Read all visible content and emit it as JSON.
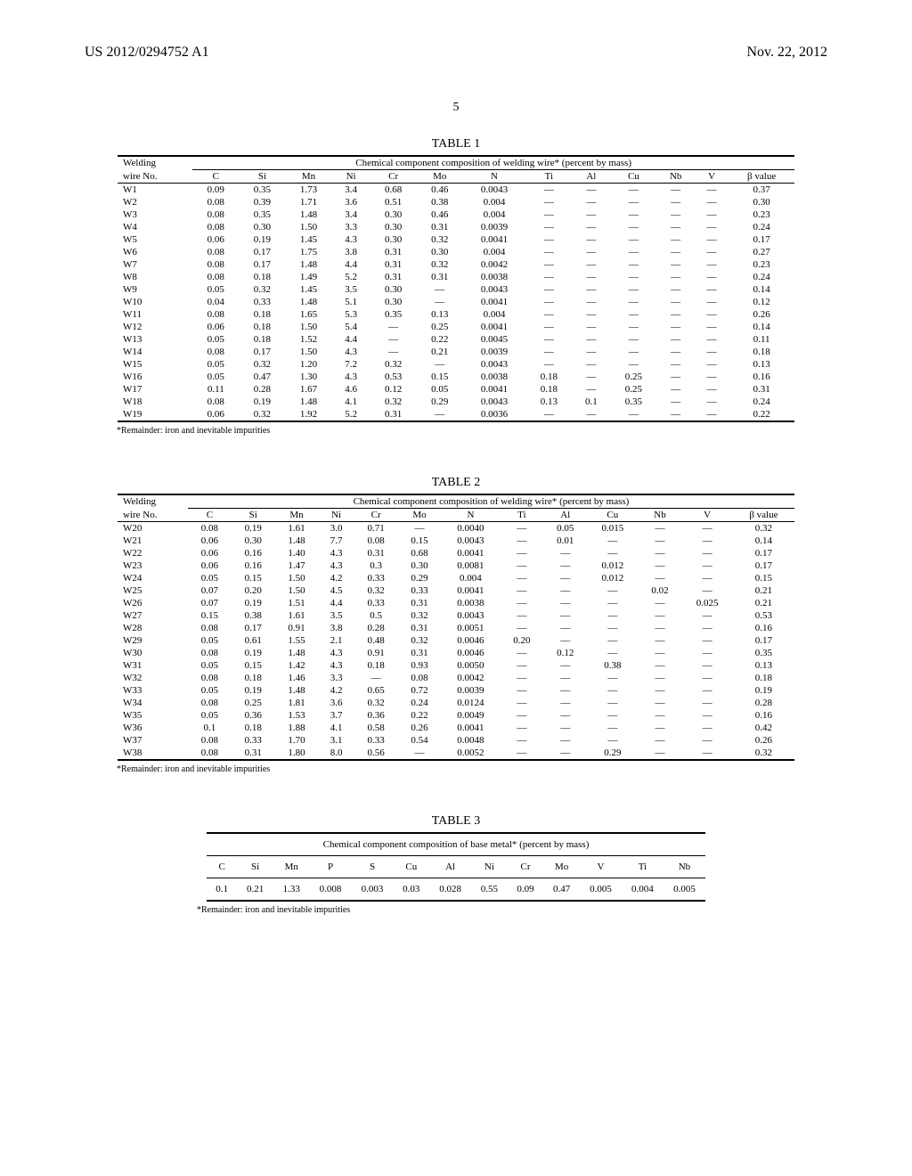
{
  "header": {
    "doc_id": "US 2012/0294752 A1",
    "date": "Nov. 22, 2012"
  },
  "page_number": "5",
  "footnote": "*Remainder: iron and inevitable impurities",
  "table1": {
    "title": "TABLE 1",
    "span_header": "Chemical component composition of welding wire* (percent by mass)",
    "col_label_1": "Welding",
    "col_label_2": "wire No.",
    "cols": [
      "C",
      "Si",
      "Mn",
      "Ni",
      "Cr",
      "Mo",
      "N",
      "Ti",
      "Al",
      "Cu",
      "Nb",
      "V",
      "β value"
    ],
    "rows": [
      {
        "id": "W1",
        "v": [
          "0.09",
          "0.35",
          "1.73",
          "3.4",
          "0.68",
          "0.46",
          "0.0043",
          "—",
          "—",
          "—",
          "—",
          "—",
          "0.37"
        ]
      },
      {
        "id": "W2",
        "v": [
          "0.08",
          "0.39",
          "1.71",
          "3.6",
          "0.51",
          "0.38",
          "0.004",
          "—",
          "—",
          "—",
          "—",
          "—",
          "0.30"
        ]
      },
      {
        "id": "W3",
        "v": [
          "0.08",
          "0.35",
          "1.48",
          "3.4",
          "0.30",
          "0.46",
          "0.004",
          "—",
          "—",
          "—",
          "—",
          "—",
          "0.23"
        ]
      },
      {
        "id": "W4",
        "v": [
          "0.08",
          "0.30",
          "1.50",
          "3.3",
          "0.30",
          "0.31",
          "0.0039",
          "—",
          "—",
          "—",
          "—",
          "—",
          "0.24"
        ]
      },
      {
        "id": "W5",
        "v": [
          "0.06",
          "0.19",
          "1.45",
          "4.3",
          "0.30",
          "0.32",
          "0.0041",
          "—",
          "—",
          "—",
          "—",
          "—",
          "0.17"
        ]
      },
      {
        "id": "W6",
        "v": [
          "0.08",
          "0.17",
          "1.75",
          "3.8",
          "0.31",
          "0.30",
          "0.004",
          "—",
          "—",
          "—",
          "—",
          "—",
          "0.27"
        ]
      },
      {
        "id": "W7",
        "v": [
          "0.08",
          "0.17",
          "1.48",
          "4.4",
          "0.31",
          "0.32",
          "0.0042",
          "—",
          "—",
          "—",
          "—",
          "—",
          "0.23"
        ]
      },
      {
        "id": "W8",
        "v": [
          "0.08",
          "0.18",
          "1.49",
          "5.2",
          "0.31",
          "0.31",
          "0.0038",
          "—",
          "—",
          "—",
          "—",
          "—",
          "0.24"
        ]
      },
      {
        "id": "W9",
        "v": [
          "0.05",
          "0.32",
          "1.45",
          "3.5",
          "0.30",
          "—",
          "0.0043",
          "—",
          "—",
          "—",
          "—",
          "—",
          "0.14"
        ]
      },
      {
        "id": "W10",
        "v": [
          "0.04",
          "0.33",
          "1.48",
          "5.1",
          "0.30",
          "—",
          "0.0041",
          "—",
          "—",
          "—",
          "—",
          "—",
          "0.12"
        ]
      },
      {
        "id": "W11",
        "v": [
          "0.08",
          "0.18",
          "1.65",
          "5.3",
          "0.35",
          "0.13",
          "0.004",
          "—",
          "—",
          "—",
          "—",
          "—",
          "0.26"
        ]
      },
      {
        "id": "W12",
        "v": [
          "0.06",
          "0.18",
          "1.50",
          "5.4",
          "—",
          "0.25",
          "0.0041",
          "—",
          "—",
          "—",
          "—",
          "—",
          "0.14"
        ]
      },
      {
        "id": "W13",
        "v": [
          "0.05",
          "0.18",
          "1.52",
          "4.4",
          "—",
          "0.22",
          "0.0045",
          "—",
          "—",
          "—",
          "—",
          "—",
          "0.11"
        ]
      },
      {
        "id": "W14",
        "v": [
          "0.08",
          "0.17",
          "1.50",
          "4.3",
          "—",
          "0.21",
          "0.0039",
          "—",
          "—",
          "—",
          "—",
          "—",
          "0.18"
        ]
      },
      {
        "id": "W15",
        "v": [
          "0.05",
          "0.32",
          "1.20",
          "7.2",
          "0.32",
          "—",
          "0.0043",
          "—",
          "—",
          "—",
          "—",
          "—",
          "0.13"
        ]
      },
      {
        "id": "W16",
        "v": [
          "0.05",
          "0.47",
          "1.30",
          "4.3",
          "0.53",
          "0.15",
          "0.0038",
          "0.18",
          "—",
          "0.25",
          "—",
          "—",
          "0.16"
        ]
      },
      {
        "id": "W17",
        "v": [
          "0.11",
          "0.28",
          "1.67",
          "4.6",
          "0.12",
          "0.05",
          "0.0041",
          "0.18",
          "—",
          "0.25",
          "—",
          "—",
          "0.31"
        ]
      },
      {
        "id": "W18",
        "v": [
          "0.08",
          "0.19",
          "1.48",
          "4.1",
          "0.32",
          "0.29",
          "0.0043",
          "0.13",
          "0.1",
          "0.35",
          "—",
          "—",
          "0.24"
        ]
      },
      {
        "id": "W19",
        "v": [
          "0.06",
          "0.32",
          "1.92",
          "5.2",
          "0.31",
          "—",
          "0.0036",
          "—",
          "—",
          "—",
          "—",
          "—",
          "0.22"
        ]
      }
    ]
  },
  "table2": {
    "title": "TABLE 2",
    "span_header": "Chemical component composition of welding wire* (percent by mass)",
    "col_label_1": "Welding",
    "col_label_2": "wire No.",
    "cols": [
      "C",
      "Si",
      "Mn",
      "Ni",
      "Cr",
      "Mo",
      "N",
      "Ti",
      "Al",
      "Cu",
      "Nb",
      "V",
      "β value"
    ],
    "rows": [
      {
        "id": "W20",
        "v": [
          "0.08",
          "0.19",
          "1.61",
          "3.0",
          "0.71",
          "—",
          "0.0040",
          "—",
          "0.05",
          "0.015",
          "—",
          "—",
          "0.32"
        ]
      },
      {
        "id": "W21",
        "v": [
          "0.06",
          "0.30",
          "1.48",
          "7.7",
          "0.08",
          "0.15",
          "0.0043",
          "—",
          "0.01",
          "—",
          "—",
          "—",
          "0.14"
        ]
      },
      {
        "id": "W22",
        "v": [
          "0.06",
          "0.16",
          "1.40",
          "4.3",
          "0.31",
          "0.68",
          "0.0041",
          "—",
          "—",
          "—",
          "—",
          "—",
          "0.17"
        ]
      },
      {
        "id": "W23",
        "v": [
          "0.06",
          "0.16",
          "1.47",
          "4.3",
          "0.3",
          "0.30",
          "0.0081",
          "—",
          "—",
          "0.012",
          "—",
          "—",
          "0.17"
        ]
      },
      {
        "id": "W24",
        "v": [
          "0.05",
          "0.15",
          "1.50",
          "4.2",
          "0.33",
          "0.29",
          "0.004",
          "—",
          "—",
          "0.012",
          "—",
          "—",
          "0.15"
        ]
      },
      {
        "id": "W25",
        "v": [
          "0.07",
          "0.20",
          "1.50",
          "4.5",
          "0.32",
          "0.33",
          "0.0041",
          "—",
          "—",
          "—",
          "0.02",
          "—",
          "0.21"
        ]
      },
      {
        "id": "W26",
        "v": [
          "0.07",
          "0.19",
          "1.51",
          "4.4",
          "0.33",
          "0.31",
          "0.0038",
          "—",
          "—",
          "—",
          "—",
          "0.025",
          "0.21"
        ]
      },
      {
        "id": "W27",
        "v": [
          "0.15",
          "0.38",
          "1.61",
          "3.5",
          "0.5",
          "0.32",
          "0.0043",
          "—",
          "—",
          "—",
          "—",
          "—",
          "0.53"
        ]
      },
      {
        "id": "W28",
        "v": [
          "0.08",
          "0.17",
          "0.91",
          "3.8",
          "0.28",
          "0.31",
          "0.0051",
          "—",
          "—",
          "—",
          "—",
          "—",
          "0.16"
        ]
      },
      {
        "id": "W29",
        "v": [
          "0.05",
          "0.61",
          "1.55",
          "2.1",
          "0.48",
          "0.32",
          "0.0046",
          "0.20",
          "—",
          "—",
          "—",
          "—",
          "0.17"
        ]
      },
      {
        "id": "W30",
        "v": [
          "0.08",
          "0.19",
          "1.48",
          "4.3",
          "0.91",
          "0.31",
          "0.0046",
          "—",
          "0.12",
          "—",
          "—",
          "—",
          "0.35"
        ]
      },
      {
        "id": "W31",
        "v": [
          "0.05",
          "0.15",
          "1.42",
          "4.3",
          "0.18",
          "0.93",
          "0.0050",
          "—",
          "—",
          "0.38",
          "—",
          "—",
          "0.13"
        ]
      },
      {
        "id": "W32",
        "v": [
          "0.08",
          "0.18",
          "1.46",
          "3.3",
          "—",
          "0.08",
          "0.0042",
          "—",
          "—",
          "—",
          "—",
          "—",
          "0.18"
        ]
      },
      {
        "id": "W33",
        "v": [
          "0.05",
          "0.19",
          "1.48",
          "4.2",
          "0.65",
          "0.72",
          "0.0039",
          "—",
          "—",
          "—",
          "—",
          "—",
          "0.19"
        ]
      },
      {
        "id": "W34",
        "v": [
          "0.08",
          "0.25",
          "1.81",
          "3.6",
          "0.32",
          "0.24",
          "0.0124",
          "—",
          "—",
          "—",
          "—",
          "—",
          "0.28"
        ]
      },
      {
        "id": "W35",
        "v": [
          "0.05",
          "0.36",
          "1.53",
          "3.7",
          "0.36",
          "0.22",
          "0.0049",
          "—",
          "—",
          "—",
          "—",
          "—",
          "0.16"
        ]
      },
      {
        "id": "W36",
        "v": [
          "0.1",
          "0.18",
          "1.88",
          "4.1",
          "0.58",
          "0.26",
          "0.0041",
          "—",
          "—",
          "—",
          "—",
          "—",
          "0.42"
        ]
      },
      {
        "id": "W37",
        "v": [
          "0.08",
          "0.33",
          "1.70",
          "3.1",
          "0.33",
          "0.54",
          "0.0048",
          "—",
          "—",
          "—",
          "—",
          "—",
          "0.26"
        ]
      },
      {
        "id": "W38",
        "v": [
          "0.08",
          "0.31",
          "1.80",
          "8.0",
          "0.56",
          "—",
          "0.0052",
          "—",
          "—",
          "0.29",
          "—",
          "—",
          "0.32"
        ]
      }
    ]
  },
  "table3": {
    "title": "TABLE 3",
    "span_header": "Chemical component composition of base metal* (percent by mass)",
    "cols": [
      "C",
      "Si",
      "Mn",
      "P",
      "S",
      "Cu",
      "Al",
      "Ni",
      "Cr",
      "Mo",
      "V",
      "Ti",
      "Nb"
    ],
    "row": [
      "0.1",
      "0.21",
      "1.33",
      "0.008",
      "0.003",
      "0.03",
      "0.028",
      "0.55",
      "0.09",
      "0.47",
      "0.005",
      "0.004",
      "0.005"
    ]
  }
}
